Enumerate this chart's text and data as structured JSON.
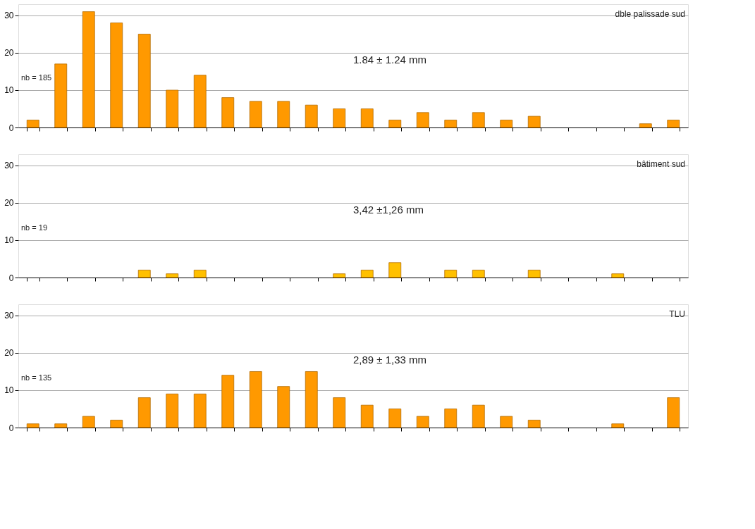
{
  "chart_data": [
    {
      "type": "bar",
      "annotations": [
        "dble palissade sud",
        "nb = 185",
        "1.84 ± 1.24 mm"
      ],
      "categories": [
        null,
        null,
        null,
        null,
        null,
        null,
        null,
        null,
        null,
        null,
        null,
        null,
        null,
        null,
        null,
        null,
        null,
        null,
        null,
        null,
        null,
        null,
        null,
        null
      ],
      "series": [
        {
          "color": "#ff9900",
          "values": [
            2,
            17,
            31,
            28,
            25,
            10,
            14,
            8,
            7,
            7,
            6,
            5,
            5,
            2,
            4,
            2,
            4,
            2,
            3,
            null,
            null,
            null,
            1,
            2
          ]
        }
      ],
      "ylim": [
        0,
        33
      ],
      "yticks": [
        0,
        10,
        20,
        30
      ],
      "grid": "y",
      "tick_labels": "y"
    },
    {
      "type": "bar",
      "annotations": [
        "bâtiment sud",
        "nb = 19",
        "3,42 ±1,26 mm"
      ],
      "categories": [
        null,
        null,
        null,
        null,
        null,
        null,
        null,
        null,
        null,
        null,
        null,
        null,
        null,
        null,
        null,
        null,
        null,
        null,
        null,
        null,
        null,
        null,
        null,
        null
      ],
      "series": [
        {
          "color": "#ffc000",
          "values": [
            null,
            null,
            null,
            null,
            2,
            1,
            2,
            null,
            null,
            null,
            null,
            1,
            2,
            4,
            null,
            2,
            2,
            null,
            2,
            null,
            null,
            1,
            null,
            null
          ]
        }
      ],
      "ylim": [
        0,
        33
      ],
      "yticks": [
        0,
        10,
        20,
        30
      ],
      "grid": "y",
      "tick_labels": "y"
    },
    {
      "type": "bar",
      "annotations": [
        "TLU",
        "nb = 135",
        "2,89 ± 1,33 mm"
      ],
      "categories": [
        null,
        null,
        null,
        null,
        null,
        null,
        null,
        null,
        null,
        null,
        null,
        null,
        null,
        null,
        null,
        null,
        null,
        null,
        null,
        null,
        null,
        null,
        null,
        null
      ],
      "series": [
        {
          "color": "#ff9900",
          "values": [
            1,
            1,
            3,
            2,
            8,
            9,
            9,
            14,
            15,
            11,
            15,
            8,
            6,
            5,
            3,
            5,
            6,
            3,
            2,
            null,
            null,
            1,
            null,
            8
          ]
        }
      ],
      "ylim": [
        0,
        33
      ],
      "yticks": [
        0,
        10,
        20,
        30
      ],
      "grid": "y",
      "tick_labels": "y"
    }
  ]
}
